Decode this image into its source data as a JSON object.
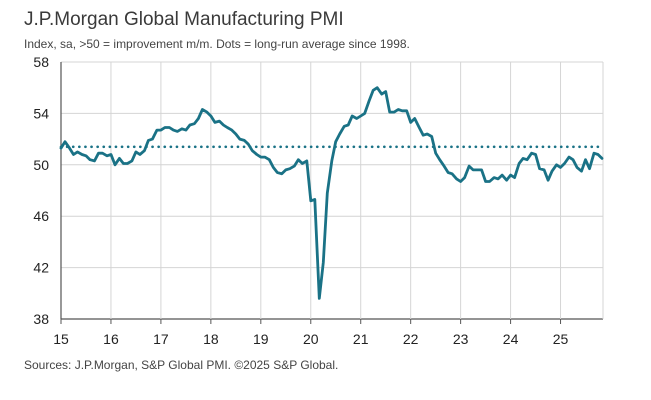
{
  "chart_data": {
    "type": "line",
    "title": "J.P.Morgan Global Manufacturing PMI",
    "subtitle": "Index, sa, >50 = improvement m/m. Dots = long-run average since 1998.",
    "source": "Sources: J.P.Morgan, S&P Global PMI. ©2025 S&P Global.",
    "xlabel": "",
    "ylabel": "",
    "xlim": [
      15,
      25.85
    ],
    "ylim": [
      38,
      58
    ],
    "x_ticks": [
      "15",
      "16",
      "17",
      "18",
      "19",
      "20",
      "21",
      "22",
      "23",
      "24",
      "25"
    ],
    "y_ticks": [
      "38",
      "42",
      "46",
      "50",
      "54",
      "58"
    ],
    "grid": true,
    "reference_line": {
      "name": "long-run average since 1998",
      "value": 51.4,
      "style": "dotted"
    },
    "line_color": "#1a7286",
    "series": [
      {
        "name": "J.P.Morgan Global Manufacturing PMI",
        "x": [
          15.0,
          15.08,
          15.17,
          15.25,
          15.33,
          15.42,
          15.5,
          15.58,
          15.67,
          15.75,
          15.83,
          15.92,
          16.0,
          16.08,
          16.17,
          16.25,
          16.33,
          16.42,
          16.5,
          16.58,
          16.67,
          16.75,
          16.83,
          16.92,
          17.0,
          17.08,
          17.17,
          17.25,
          17.33,
          17.42,
          17.5,
          17.58,
          17.67,
          17.75,
          17.83,
          17.92,
          18.0,
          18.08,
          18.17,
          18.25,
          18.33,
          18.42,
          18.5,
          18.58,
          18.67,
          18.75,
          18.83,
          18.92,
          19.0,
          19.08,
          19.17,
          19.25,
          19.33,
          19.42,
          19.5,
          19.58,
          19.67,
          19.75,
          19.83,
          19.92,
          20.0,
          20.08,
          20.17,
          20.25,
          20.33,
          20.42,
          20.5,
          20.58,
          20.67,
          20.75,
          20.83,
          20.92,
          21.0,
          21.08,
          21.17,
          21.25,
          21.33,
          21.42,
          21.5,
          21.58,
          21.67,
          21.75,
          21.83,
          21.92,
          22.0,
          22.08,
          22.17,
          22.25,
          22.33,
          22.42,
          22.5,
          22.58,
          22.67,
          22.75,
          22.83,
          22.92,
          23.0,
          23.08,
          23.17,
          23.25,
          23.33,
          23.42,
          23.5,
          23.58,
          23.67,
          23.75,
          23.83,
          23.92,
          24.0,
          24.08,
          24.17,
          24.25,
          24.33,
          24.42,
          24.5,
          24.58,
          24.67,
          24.75,
          24.83,
          24.92,
          25.0,
          25.08,
          25.17,
          25.25,
          25.33,
          25.42,
          25.5,
          25.58,
          25.67,
          25.75,
          25.83
        ],
        "values": [
          51.3,
          51.8,
          51.3,
          50.8,
          51.0,
          50.8,
          50.7,
          50.4,
          50.3,
          50.9,
          50.9,
          50.7,
          50.8,
          50.0,
          50.5,
          50.1,
          50.1,
          50.3,
          51.0,
          50.8,
          51.1,
          51.9,
          52.0,
          52.7,
          52.7,
          52.9,
          52.9,
          52.7,
          52.6,
          52.8,
          52.7,
          53.1,
          53.2,
          53.6,
          54.3,
          54.1,
          53.8,
          53.3,
          53.4,
          53.1,
          52.9,
          52.7,
          52.4,
          52.0,
          51.9,
          51.6,
          51.1,
          50.8,
          50.6,
          50.6,
          50.4,
          49.8,
          49.4,
          49.3,
          49.6,
          49.7,
          49.9,
          50.4,
          50.1,
          50.3,
          47.2,
          47.3,
          39.6,
          42.4,
          47.8,
          50.3,
          51.8,
          52.4,
          53.0,
          53.1,
          53.8,
          53.6,
          53.8,
          54.0,
          55.0,
          55.8,
          56.0,
          55.5,
          55.7,
          54.1,
          54.1,
          54.3,
          54.2,
          54.2,
          53.3,
          53.6,
          52.9,
          52.3,
          52.4,
          52.2,
          50.9,
          50.4,
          49.9,
          49.4,
          49.3,
          48.9,
          48.7,
          49.0,
          49.9,
          49.6,
          49.6,
          49.6,
          48.7,
          48.7,
          49.0,
          48.9,
          49.2,
          48.8,
          49.2,
          49.0,
          50.1,
          50.5,
          50.4,
          50.9,
          50.8,
          49.7,
          49.6,
          48.8,
          49.5,
          50.0,
          49.8,
          50.1,
          50.6,
          50.4,
          49.8,
          49.5,
          50.4,
          49.7,
          50.9,
          50.8,
          50.5
        ]
      }
    ]
  }
}
